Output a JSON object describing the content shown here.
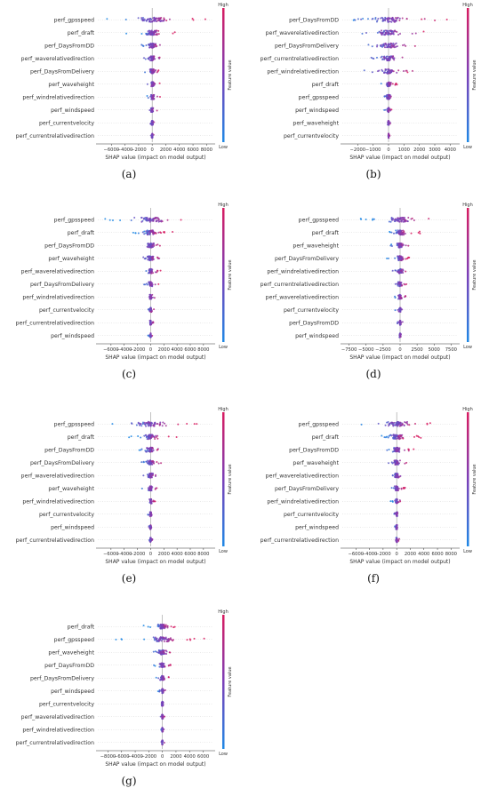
{
  "colors": {
    "low": "#1e88e5",
    "mid": "#7b3fb8",
    "high": "#d81b60"
  },
  "colorbar": {
    "high": "High",
    "low": "Low",
    "title": "Feature value"
  },
  "xlabel": "SHAP value (impact on model output)",
  "chart_data": [
    {
      "id": "a",
      "type": "scatter",
      "caption": "(a)",
      "features": [
        "perf_gpsspeed",
        "perf_draft",
        "perf_DaysFromDD",
        "perf_waverelativedirection",
        "perf_DaysFromDelivery",
        "perf_waveheight",
        "perf_windrelativedirection",
        "perf_windspeed",
        "perf_currentvelocity",
        "perf_currentrelativedirection"
      ],
      "spread": [
        9000,
        4000,
        2400,
        1800,
        1800,
        1200,
        1200,
        800,
        500,
        400
      ],
      "skew": [
        0.6,
        0.7,
        0.4,
        0.3,
        0.5,
        0.3,
        0.3,
        0.3,
        0.2,
        0.2
      ],
      "xlim": [
        -8000,
        9000
      ],
      "xticks": [
        -6000,
        -4000,
        -2000,
        0,
        2000,
        4000,
        6000,
        8000
      ],
      "xtick_labels": [
        "−6000",
        "−4000",
        "−2000",
        "0",
        "2000",
        "4000",
        "6000",
        "8000"
      ]
    },
    {
      "id": "b",
      "type": "scatter",
      "caption": "(b)",
      "features": [
        "perf_DaysFromDD",
        "perf_waverelativedirection",
        "perf_DaysFromDelivery",
        "perf_currentrelativedirection",
        "perf_windrelativedirection",
        "perf_draft",
        "perf_gpsspeed",
        "perf_windspeed",
        "perf_waveheight",
        "perf_currentvelocity"
      ],
      "spread": [
        4000,
        3500,
        3000,
        2000,
        1800,
        700,
        500,
        300,
        200,
        100
      ],
      "skew": [
        0.5,
        0.4,
        0.4,
        0.3,
        0.3,
        0.5,
        0.3,
        0.3,
        0.2,
        0.2
      ],
      "xlim": [
        -3000,
        4500
      ],
      "xticks": [
        -2000,
        -1000,
        0,
        1000,
        2000,
        3000,
        4000
      ],
      "xtick_labels": [
        "−2000",
        "−1000",
        "0",
        "1000",
        "2000",
        "3000",
        "4000"
      ]
    },
    {
      "id": "c",
      "type": "scatter",
      "caption": "(c)",
      "features": [
        "perf_gpsspeed",
        "perf_draft",
        "perf_DaysFromDD",
        "perf_waveheight",
        "perf_waverelativedirection",
        "perf_DaysFromDelivery",
        "perf_windrelativedirection",
        "perf_currentvelocity",
        "perf_currentrelativedirection",
        "perf_windspeed"
      ],
      "spread": [
        9000,
        3500,
        2500,
        2000,
        1500,
        1500,
        900,
        700,
        600,
        400
      ],
      "skew": [
        0.6,
        0.7,
        0.4,
        0.3,
        0.3,
        0.4,
        0.3,
        0.3,
        0.2,
        0.2
      ],
      "xlim": [
        -8000,
        9500
      ],
      "xticks": [
        -6000,
        -4000,
        -2000,
        0,
        2000,
        4000,
        6000,
        8000
      ],
      "xtick_labels": [
        "−6000",
        "−4000",
        "−2000",
        "0",
        "2000",
        "4000",
        "6000",
        "8000"
      ]
    },
    {
      "id": "d",
      "type": "scatter",
      "caption": "(d)",
      "features": [
        "perf_gpsspeed",
        "perf_draft",
        "perf_waveheight",
        "perf_DaysFromDelivery",
        "perf_windrelativedirection",
        "perf_currentrelativedirection",
        "perf_waverelativedirection",
        "perf_currentvelocity",
        "perf_DaysFromDD",
        "perf_windspeed"
      ],
      "spread": [
        8000,
        3000,
        2000,
        2000,
        1800,
        1400,
        1200,
        800,
        600,
        500
      ],
      "skew": [
        0.6,
        0.7,
        0.4,
        0.4,
        0.3,
        0.3,
        0.3,
        0.2,
        0.2,
        0.2
      ],
      "xlim": [
        -8500,
        8500
      ],
      "xticks": [
        -7500,
        -5000,
        -2500,
        0,
        2500,
        5000,
        7500
      ],
      "xtick_labels": [
        "−7500",
        "−5000",
        "−2500",
        "0",
        "2500",
        "5000",
        "7500"
      ]
    },
    {
      "id": "e",
      "type": "scatter",
      "caption": "(e)",
      "features": [
        "perf_gpsspeed",
        "perf_draft",
        "perf_DaysFromDD",
        "perf_DaysFromDelivery",
        "perf_waverelativedirection",
        "perf_waveheight",
        "perf_windrelativedirection",
        "perf_currentvelocity",
        "perf_windspeed",
        "perf_currentrelativedirection"
      ],
      "spread": [
        9000,
        4000,
        2500,
        2000,
        1800,
        1400,
        900,
        600,
        500,
        400
      ],
      "skew": [
        0.6,
        0.7,
        0.4,
        0.4,
        0.3,
        0.3,
        0.3,
        0.2,
        0.2,
        0.2
      ],
      "xlim": [
        -8000,
        9500
      ],
      "xticks": [
        -6000,
        -4000,
        -2000,
        0,
        2000,
        4000,
        6000,
        8000
      ],
      "xtick_labels": [
        "−6000",
        "−4000",
        "−2000",
        "0",
        "2000",
        "4000",
        "6000",
        "8000"
      ]
    },
    {
      "id": "f",
      "type": "scatter",
      "caption": "(f)",
      "features": [
        "perf_gpsspeed",
        "perf_draft",
        "perf_DaysFromDD",
        "perf_waveheight",
        "perf_waverelativedirection",
        "perf_DaysFromDelivery",
        "perf_windrelativedirection",
        "perf_currentvelocity",
        "perf_windspeed",
        "perf_currentrelativedirection"
      ],
      "spread": [
        8000,
        4000,
        2500,
        1800,
        1500,
        1500,
        900,
        600,
        500,
        400
      ],
      "skew": [
        0.6,
        0.7,
        0.4,
        0.3,
        0.3,
        0.4,
        0.3,
        0.2,
        0.2,
        0.2
      ],
      "xlim": [
        -8000,
        9000
      ],
      "xticks": [
        -6000,
        -4000,
        -2000,
        0,
        2000,
        4000,
        6000,
        8000
      ],
      "xtick_labels": [
        "−6000",
        "−4000",
        "−2000",
        "0",
        "2000",
        "4000",
        "6000",
        "8000"
      ]
    },
    {
      "id": "g",
      "type": "scatter",
      "caption": "(g)",
      "features": [
        "perf_draft",
        "perf_gpsspeed",
        "perf_waveheight",
        "perf_DaysFromDD",
        "perf_DaysFromDelivery",
        "perf_windspeed",
        "perf_currentvelocity",
        "perf_waverelativedirection",
        "perf_windrelativedirection",
        "perf_currentrelativedirection"
      ],
      "spread": [
        3000,
        7000,
        2500,
        1800,
        1400,
        700,
        500,
        400,
        300,
        300
      ],
      "skew": [
        0.8,
        0.6,
        0.4,
        0.4,
        0.4,
        0.3,
        0.2,
        0.2,
        0.2,
        0.2
      ],
      "xlim": [
        -9500,
        7500
      ],
      "xticks": [
        -8000,
        -6000,
        -4000,
        -2000,
        0,
        2000,
        4000,
        6000
      ],
      "xtick_labels": [
        "−8000",
        "−6000",
        "−4000",
        "−2000",
        "0",
        "2000",
        "4000",
        "6000"
      ]
    }
  ]
}
